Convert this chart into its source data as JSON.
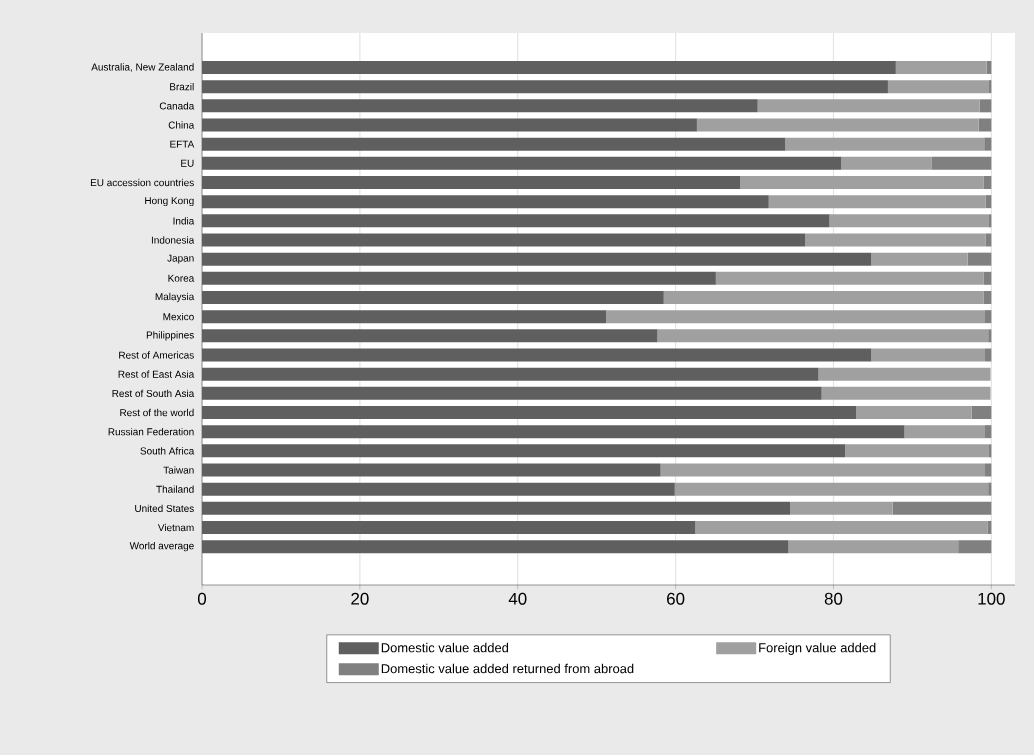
{
  "chart_data": {
    "type": "bar",
    "orientation": "horizontal",
    "stacked": true,
    "categories": [
      "Australia, New Zealand",
      "Brazil",
      "Canada",
      "China",
      "EFTA",
      "EU",
      "EU accession countries",
      "Hong Kong",
      "India",
      "Indonesia",
      "Japan",
      "Korea",
      "Malaysia",
      "Mexico",
      "Philippines",
      "Rest of Americas",
      "Rest of East Asia",
      "Rest of South Asia",
      "Rest of the world",
      "Russian Federation",
      "South Africa",
      "Taiwan",
      "Thailand",
      "United States",
      "Vietnam",
      "World average"
    ],
    "series": [
      {
        "name": "Domestic value added",
        "color": "#5f5f5f",
        "values": [
          87.9,
          86.9,
          70.4,
          62.7,
          73.9,
          81.0,
          68.2,
          71.8,
          79.5,
          76.4,
          84.8,
          65.1,
          58.5,
          51.2,
          57.7,
          84.8,
          78.1,
          78.5,
          82.9,
          89.0,
          81.5,
          58.1,
          59.9,
          74.5,
          62.5,
          74.3
        ]
      },
      {
        "name": "Foreign value added",
        "color": "#a0a0a0",
        "values": [
          11.5,
          12.8,
          28.1,
          35.7,
          25.2,
          11.4,
          30.8,
          27.5,
          20.2,
          22.9,
          12.2,
          33.9,
          40.5,
          48.0,
          41.9,
          14.4,
          21.8,
          21.4,
          14.6,
          10.2,
          18.2,
          41.1,
          39.7,
          13.0,
          37.0,
          21.5
        ]
      },
      {
        "name": "Domestic value added returned from abroad",
        "color": "#808080",
        "values": [
          0.6,
          0.3,
          1.5,
          1.6,
          0.9,
          7.6,
          1.0,
          0.7,
          0.3,
          0.7,
          3.0,
          1.0,
          1.0,
          0.8,
          0.4,
          0.8,
          null,
          null,
          2.5,
          0.8,
          0.3,
          0.8,
          0.4,
          12.5,
          0.5,
          4.2
        ]
      }
    ],
    "xlim": [
      0,
      103
    ],
    "xticks": [
      0,
      20,
      40,
      60,
      80,
      100
    ],
    "grid": "x",
    "legend": "bottom"
  }
}
